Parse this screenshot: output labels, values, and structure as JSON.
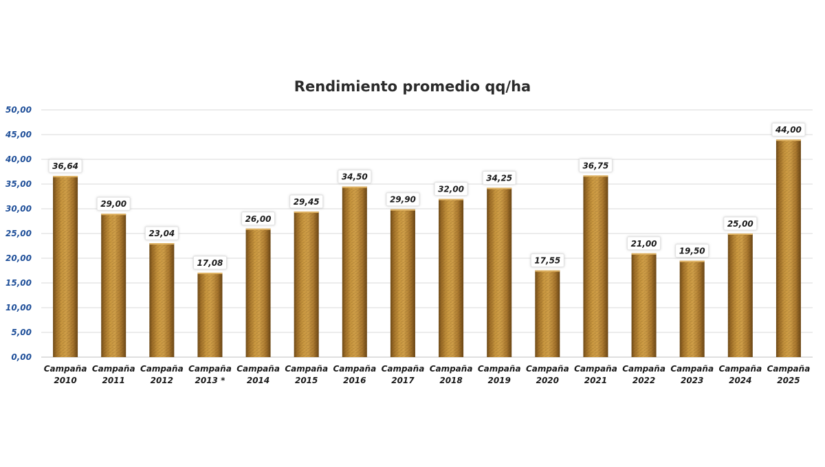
{
  "chart_data": {
    "type": "bar",
    "title": "Rendimiento promedio qq/ha",
    "xlabel": "",
    "ylabel": "",
    "ylim": [
      0,
      50
    ],
    "y_ticks": [
      "0,00",
      "5,00",
      "10,00",
      "15,00",
      "20,00",
      "25,00",
      "30,00",
      "35,00",
      "40,00",
      "45,00",
      "50,00"
    ],
    "y_tick_values": [
      0,
      5,
      10,
      15,
      20,
      25,
      30,
      35,
      40,
      45,
      50
    ],
    "grid": true,
    "legend": "none",
    "bar_color": "#b8862e",
    "categories": [
      [
        "Campaña",
        "2010"
      ],
      [
        "Campaña",
        "2011"
      ],
      [
        "Campaña",
        "2012"
      ],
      [
        "Campaña",
        "2013 *"
      ],
      [
        "Campaña",
        "2014"
      ],
      [
        "Campaña",
        "2015"
      ],
      [
        "Campaña",
        "2016"
      ],
      [
        "Campaña",
        "2017"
      ],
      [
        "Campaña",
        "2018"
      ],
      [
        "Campaña",
        "2019"
      ],
      [
        "Campaña",
        "2020"
      ],
      [
        "Campaña",
        "2021"
      ],
      [
        "Campaña",
        "2022"
      ],
      [
        "Campaña",
        "2023"
      ],
      [
        "Campaña",
        "2024"
      ],
      [
        "Campaña",
        "2025"
      ]
    ],
    "values": [
      36.64,
      29.0,
      23.04,
      17.08,
      26.0,
      29.45,
      34.5,
      29.9,
      32.0,
      34.25,
      17.55,
      36.75,
      21.0,
      19.5,
      25.0,
      44.0
    ],
    "data_labels": [
      "36,64",
      "29,00",
      "23,04",
      "17,08",
      "26,00",
      "29,45",
      "34,50",
      "29,90",
      "32,00",
      "34,25",
      "17,55",
      "36,75",
      "21,00",
      "19,50",
      "25,00",
      "44,00"
    ]
  }
}
